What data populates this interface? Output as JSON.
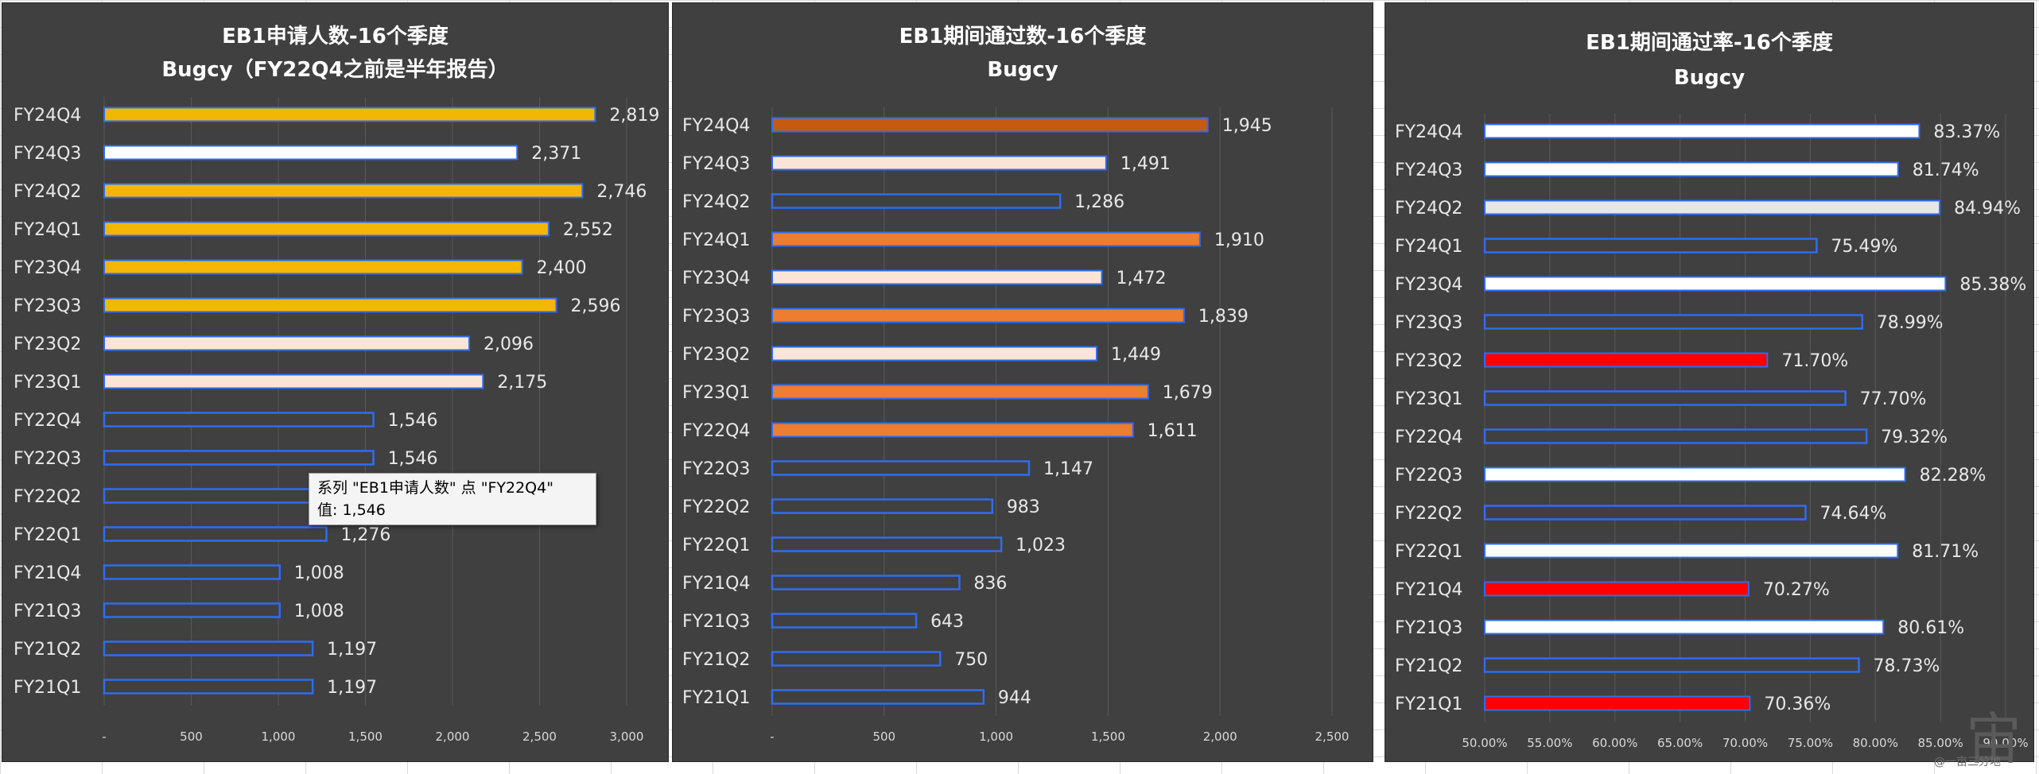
{
  "sheet_background": "#ffffff",
  "panels": [
    {
      "title_line1": "EB1申请人数-16个季度",
      "title_line2": "Bugcy（FY22Q4之前是半年报告）"
    },
    {
      "title_line1": "EB1期间通过数-16个季度",
      "title_line2": "Bugcy"
    },
    {
      "title_line1": "EB1期间通过率-16个季度",
      "title_line2": "Bugcy"
    }
  ],
  "tooltip": {
    "line1": "系列 \"EB1申请人数\" 点 \"FY22Q4\"",
    "line2": "值: 1,546"
  },
  "watermark": {
    "glyph": "宙",
    "caption": "@一亩三分地"
  },
  "chart_data": [
    {
      "type": "bar",
      "orientation": "horizontal",
      "title": "EB1申请人数-16个季度",
      "subtitle": "Bugcy（FY22Q4之前是半年报告）",
      "categories": [
        "FY24Q4",
        "FY24Q3",
        "FY24Q2",
        "FY24Q1",
        "FY23Q4",
        "FY23Q3",
        "FY23Q2",
        "FY23Q1",
        "FY22Q4",
        "FY22Q3",
        "FY22Q2",
        "FY22Q1",
        "FY21Q4",
        "FY21Q3",
        "FY21Q2",
        "FY21Q1"
      ],
      "values": [
        2819,
        2371,
        2746,
        2552,
        2400,
        2596,
        2096,
        2175,
        1546,
        1546,
        1276,
        1276,
        1008,
        1008,
        1197,
        1197
      ],
      "labels": [
        "2,819",
        "2,371",
        "2,746",
        "2,552",
        "2,400",
        "2,596",
        "2,096",
        "2,175",
        "1,546",
        "1,546",
        "",
        "1,276",
        "1,008",
        "1,008",
        "1,197",
        "1,197"
      ],
      "bar_colors": [
        "#f2b705",
        "#ffffff",
        "#f2b705",
        "#f2b705",
        "#f2b705",
        "#f2b705",
        "#fbe5d6",
        "#fbe5d6",
        "#404040",
        "#404040",
        "#404040",
        "#404040",
        "#404040",
        "#404040",
        "#404040",
        "#404040"
      ],
      "xlim": [
        0,
        3000
      ],
      "xticks": [
        "-",
        "500",
        "1,000",
        "1,500",
        "2,000",
        "2,500",
        "3,000"
      ],
      "grid": true
    },
    {
      "type": "bar",
      "orientation": "horizontal",
      "title": "EB1期间通过数-16个季度",
      "subtitle": "Bugcy",
      "categories": [
        "FY24Q4",
        "FY24Q3",
        "FY24Q2",
        "FY24Q1",
        "FY23Q4",
        "FY23Q3",
        "FY23Q2",
        "FY23Q1",
        "FY22Q4",
        "FY22Q3",
        "FY22Q2",
        "FY22Q1",
        "FY21Q4",
        "FY21Q3",
        "FY21Q2",
        "FY21Q1"
      ],
      "values": [
        1945,
        1491,
        1286,
        1910,
        1472,
        1839,
        1449,
        1679,
        1611,
        1147,
        983,
        1023,
        836,
        643,
        750,
        944
      ],
      "labels": [
        "1,945",
        "1,491",
        "1,286",
        "1,910",
        "1,472",
        "1,839",
        "1,449",
        "1,679",
        "1,611",
        "1,147",
        "983",
        "1,023",
        "836",
        "643",
        "750",
        "944"
      ],
      "bar_colors": [
        "#c55a11",
        "#fbe5d6",
        "#404040",
        "#ed7d31",
        "#fbe5d6",
        "#ed7d31",
        "#fbe5d6",
        "#ed7d31",
        "#ed7d31",
        "#404040",
        "#404040",
        "#404040",
        "#404040",
        "#404040",
        "#404040",
        "#404040"
      ],
      "xlim": [
        0,
        2500
      ],
      "xticks": [
        "-",
        "500",
        "1,000",
        "1,500",
        "2,000",
        "2,500"
      ],
      "grid": true
    },
    {
      "type": "bar",
      "orientation": "horizontal",
      "title": "EB1期间通过率-16个季度",
      "subtitle": "Bugcy",
      "categories": [
        "FY24Q4",
        "FY24Q3",
        "FY24Q2",
        "FY24Q1",
        "FY23Q4",
        "FY23Q3",
        "FY23Q2",
        "FY23Q1",
        "FY22Q4",
        "FY22Q3",
        "FY22Q2",
        "FY22Q1",
        "FY21Q4",
        "FY21Q3",
        "FY21Q2",
        "FY21Q1"
      ],
      "values": [
        83.37,
        81.74,
        84.94,
        75.49,
        85.38,
        78.99,
        71.7,
        77.7,
        79.32,
        82.28,
        74.64,
        81.71,
        70.27,
        80.61,
        78.73,
        70.36
      ],
      "labels": [
        "83.37%",
        "81.74%",
        "84.94%",
        "75.49%",
        "85.38%",
        "78.99%",
        "71.70%",
        "77.70%",
        "79.32%",
        "82.28%",
        "74.64%",
        "81.71%",
        "70.27%",
        "80.61%",
        "78.73%",
        "70.36%"
      ],
      "bar_colors": [
        "#ffffff",
        "#ffffff",
        "#e7e6e6",
        "#404040",
        "#ffffff",
        "#404040",
        "#ff0000",
        "#404040",
        "#404040",
        "#ffffff",
        "#404040",
        "#ffffff",
        "#ff0000",
        "#ffffff",
        "#404040",
        "#ff0000"
      ],
      "xlim": [
        50,
        90
      ],
      "xticks": [
        "50.00%",
        "55.00%",
        "60.00%",
        "65.00%",
        "70.00%",
        "75.00%",
        "80.00%",
        "85.00%",
        "90.00%"
      ],
      "grid": true
    }
  ]
}
